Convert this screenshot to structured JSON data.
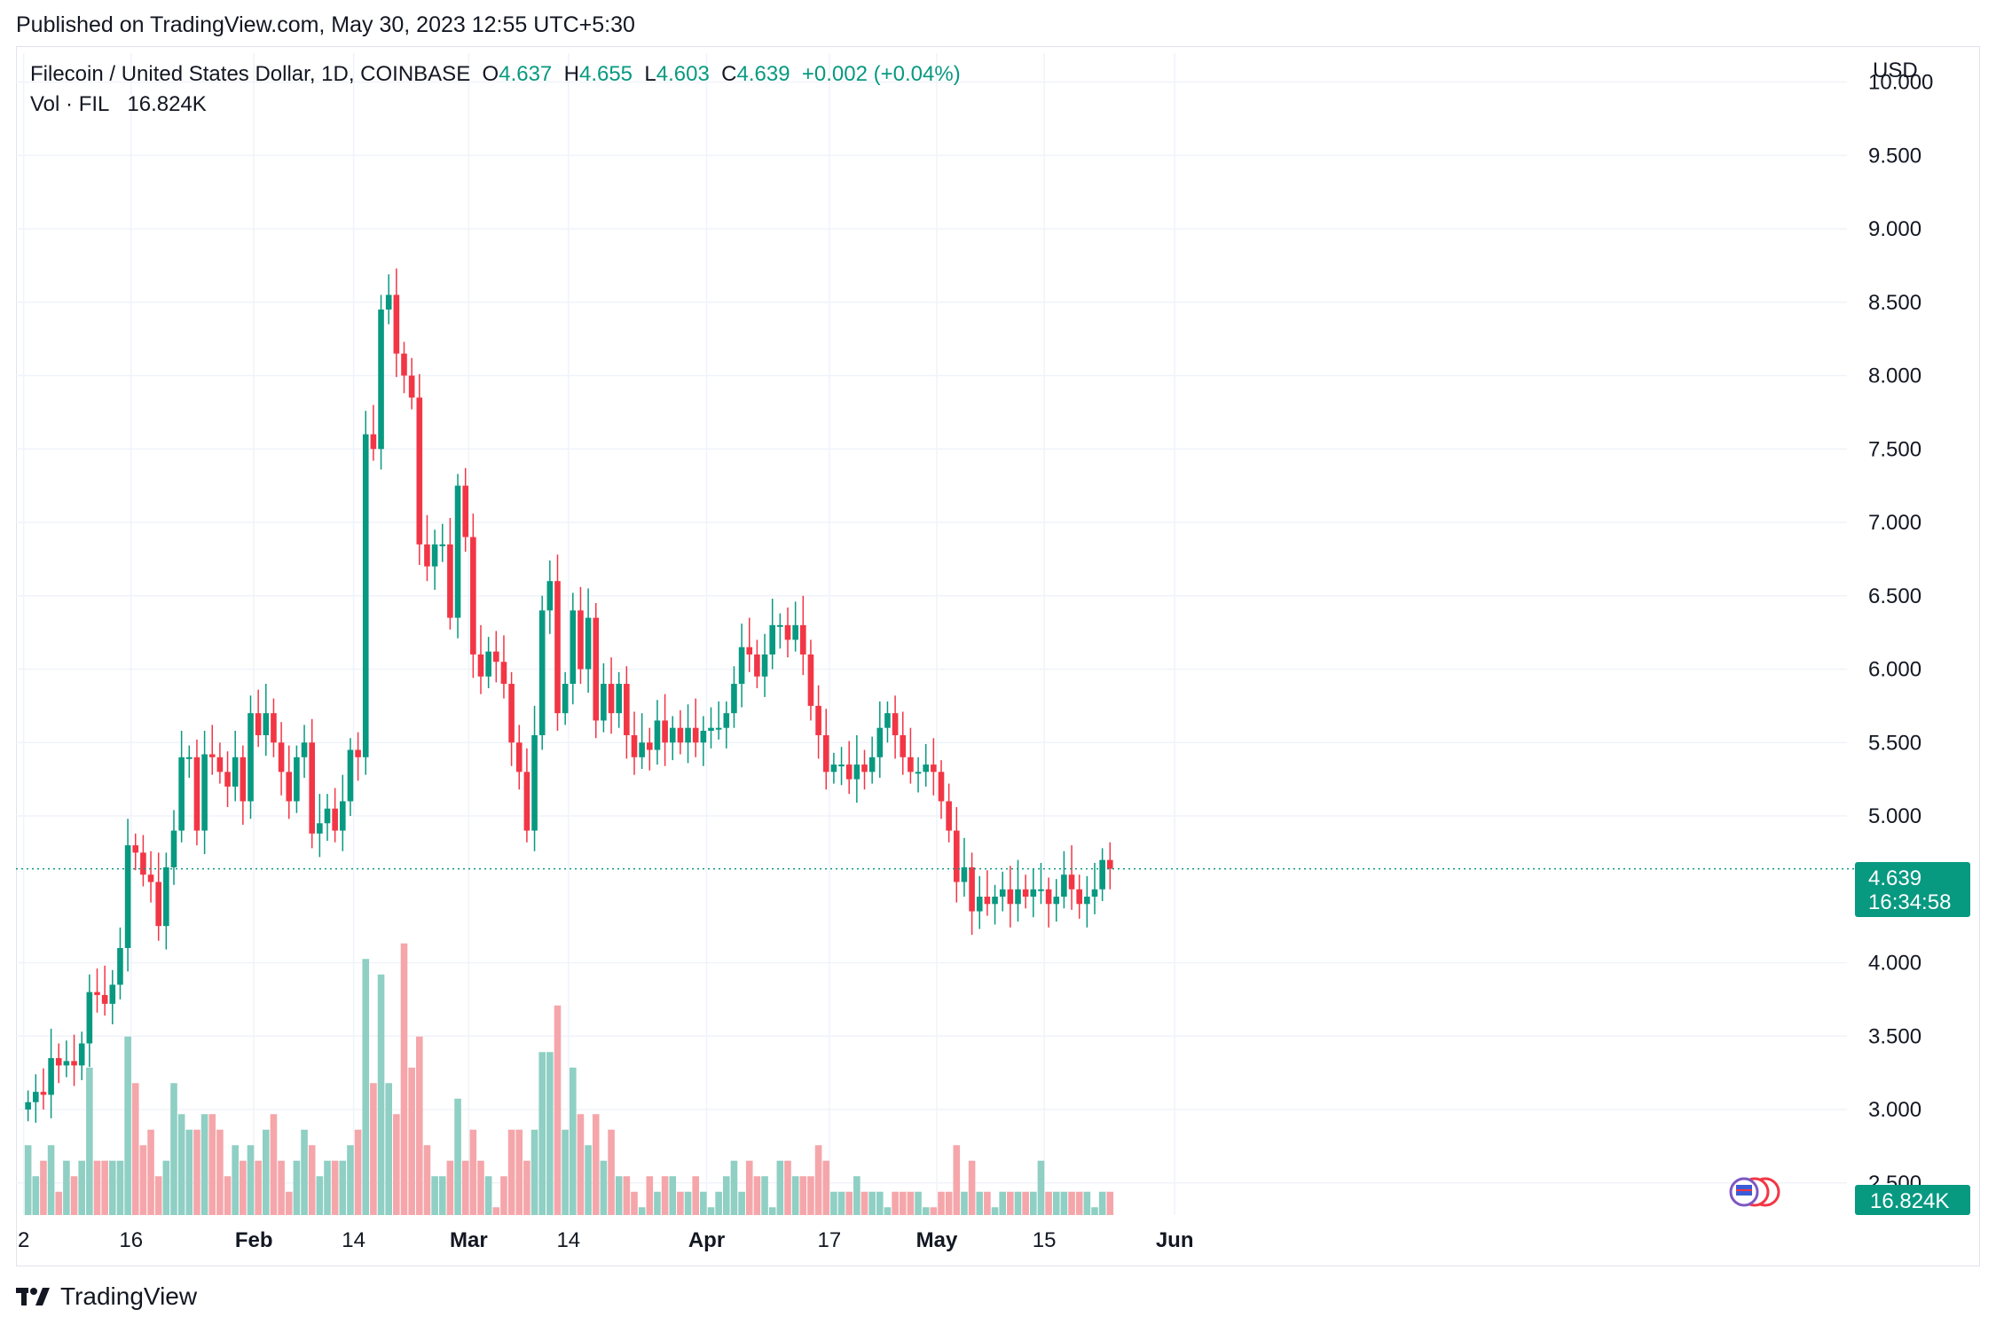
{
  "header": {
    "published": "Published on TradingView.com, May 30, 2023 12:55 UTC+5:30",
    "symbol": "Filecoin / United States Dollar, 1D, COINBASE",
    "open_label": "O",
    "open": "4.637",
    "high_label": "H",
    "high": "4.655",
    "low_label": "L",
    "low": "4.603",
    "close_label": "C",
    "close": "4.639",
    "change": "+0.002 (+0.04%)",
    "vol_label": "Vol · FIL",
    "vol_value": "16.824K",
    "currency": "USD"
  },
  "price_badge": {
    "price": "4.639",
    "countdown": "16:34:58"
  },
  "volume_badge": "16.824K",
  "footer": {
    "brand": "TradingView"
  },
  "colors": {
    "up": "#089981",
    "down": "#f23645",
    "up_vol": "#8fcfc4",
    "down_vol": "#f5a6aa",
    "grid": "#f0f3fa"
  },
  "chart_data": {
    "type": "candlestick",
    "title": "Filecoin / United States Dollar, 1D, COINBASE",
    "ylim": [
      2.5,
      10.0
    ],
    "y_ticks": [
      "2.500",
      "3.000",
      "3.500",
      "4.000",
      "5.000",
      "5.500",
      "6.000",
      "6.500",
      "7.000",
      "7.500",
      "8.000",
      "8.500",
      "9.000",
      "9.500",
      "10.000"
    ],
    "x_ticks": [
      {
        "label": "2",
        "day": 1
      },
      {
        "label": "16",
        "day": 15
      },
      {
        "label": "Feb",
        "day": 31
      },
      {
        "label": "14",
        "day": 44
      },
      {
        "label": "Mar",
        "day": 59
      },
      {
        "label": "14",
        "day": 72
      },
      {
        "label": "Apr",
        "day": 90
      },
      {
        "label": "17",
        "day": 106
      },
      {
        "label": "May",
        "day": 120
      },
      {
        "label": "15",
        "day": 134
      },
      {
        "label": "Jun",
        "day": 151
      }
    ],
    "closes": [
      3.05,
      3.12,
      3.1,
      3.35,
      3.3,
      3.33,
      3.3,
      3.45,
      3.8,
      3.78,
      3.72,
      3.85,
      4.1,
      4.8,
      4.75,
      4.6,
      4.55,
      4.25,
      4.65,
      4.9,
      5.4,
      5.4,
      4.9,
      5.42,
      5.4,
      5.3,
      5.2,
      5.4,
      5.1,
      5.7,
      5.55,
      5.7,
      5.5,
      5.3,
      5.1,
      5.4,
      5.5,
      4.88,
      4.95,
      5.05,
      4.9,
      5.1,
      5.45,
      5.4,
      7.6,
      7.5,
      8.45,
      8.55,
      8.15,
      8.0,
      7.85,
      6.85,
      6.7,
      6.85,
      6.85,
      6.35,
      7.25,
      6.9,
      6.1,
      5.95,
      6.12,
      6.05,
      5.9,
      5.5,
      5.3,
      4.9,
      5.55,
      6.4,
      6.6,
      5.7,
      5.9,
      6.4,
      6.0,
      6.35,
      5.65,
      5.9,
      5.7,
      5.9,
      5.55,
      5.4,
      5.5,
      5.45,
      5.65,
      5.5,
      5.6,
      5.5,
      5.6,
      5.5,
      5.58,
      5.6,
      5.6,
      5.7,
      5.9,
      6.15,
      6.1,
      5.95,
      6.1,
      6.3,
      6.3,
      6.2,
      6.3,
      6.1,
      5.75,
      5.55,
      5.3,
      5.35,
      5.35,
      5.25,
      5.35,
      5.3,
      5.4,
      5.6,
      5.7,
      5.55,
      5.4,
      5.3,
      5.3,
      5.35,
      5.3,
      5.1,
      4.9,
      4.55,
      4.65,
      4.35,
      4.45,
      4.4,
      4.45,
      4.5,
      4.4,
      4.5,
      4.45,
      4.5,
      4.5,
      4.4,
      4.45,
      4.6,
      4.5,
      4.4,
      4.45,
      4.5,
      4.7,
      4.64
    ],
    "volumes": [
      2.9,
      2.7,
      2.8,
      2.9,
      2.6,
      2.8,
      2.7,
      2.8,
      3.4,
      2.8,
      2.8,
      2.8,
      2.8,
      3.6,
      3.3,
      2.9,
      3.0,
      2.7,
      2.8,
      3.3,
      3.1,
      3.0,
      3.0,
      3.1,
      3.1,
      3.0,
      2.7,
      2.9,
      2.8,
      2.9,
      2.8,
      3.0,
      3.1,
      2.8,
      2.6,
      2.8,
      3.0,
      2.9,
      2.7,
      2.8,
      2.8,
      2.8,
      2.9,
      3.0,
      4.1,
      3.3,
      4.0,
      3.3,
      3.1,
      4.2,
      3.4,
      3.6,
      2.9,
      2.7,
      2.7,
      2.8,
      3.2,
      2.8,
      3.0,
      2.8,
      2.7,
      2.5,
      2.7,
      3.0,
      3.0,
      2.8,
      3.0,
      3.5,
      3.5,
      3.8,
      3.0,
      3.4,
      3.1,
      2.9,
      3.1,
      2.8,
      3.0,
      2.7,
      2.7,
      2.6,
      2.5,
      2.7,
      2.6,
      2.7,
      2.7,
      2.6,
      2.6,
      2.7,
      2.6,
      2.5,
      2.6,
      2.7,
      2.8,
      2.6,
      2.8,
      2.7,
      2.7,
      2.5,
      2.8,
      2.8,
      2.7,
      2.7,
      2.7,
      2.9,
      2.8,
      2.6,
      2.6,
      2.6,
      2.7,
      2.6,
      2.6,
      2.6,
      2.5,
      2.6,
      2.6,
      2.6,
      2.6,
      2.5,
      2.5,
      2.6,
      2.6,
      2.9,
      2.6,
      2.8,
      2.6,
      2.6,
      2.5,
      2.6,
      2.6,
      2.6,
      2.6,
      2.6,
      2.8,
      2.6,
      2.6,
      2.6,
      2.6,
      2.6,
      2.6,
      2.5,
      2.6,
      2.6,
      2.5
    ]
  }
}
